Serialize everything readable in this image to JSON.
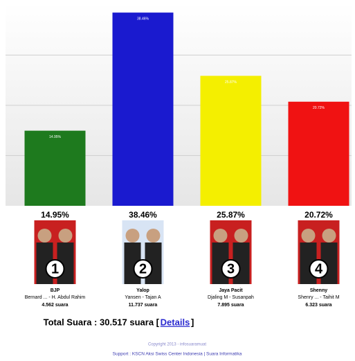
{
  "chart_data": {
    "type": "bar",
    "categories": [
      "BJP",
      "Yalop",
      "Jaya Pacit",
      "Shenny"
    ],
    "values": [
      14.95,
      38.46,
      25.87,
      20.72
    ],
    "value_labels": [
      "14.95%",
      "38.46%",
      "25.87%",
      "20.72%"
    ],
    "colors": [
      "#1e7a1e",
      "#1a1acf",
      "#f4ef00",
      "#f01212"
    ],
    "ylim": [
      0,
      40
    ],
    "grid": true,
    "grid_values": [
      10,
      20,
      30
    ],
    "candidates": [
      {
        "number": "1",
        "pair": "Bernard ... - H. Abdul Rahim",
        "votes": "4.562 suara"
      },
      {
        "number": "2",
        "pair": "Yansen - Tajan A",
        "votes": "11.737 suara"
      },
      {
        "number": "3",
        "pair": "Djaling M - Susanpah",
        "votes": "7.895 suara"
      },
      {
        "number": "4",
        "pair": "Shenry ... - Taihit M",
        "votes": "6.323 suara"
      }
    ]
  },
  "footer": {
    "total": "Total Suara : 30.517 suara [",
    "details": "Details",
    "close": "]",
    "copyright": "Copyright 2013 - infosuaramuat",
    "support": "Support : KSCN Aksi Swiss Center Indonesia | Suara Informatika"
  }
}
